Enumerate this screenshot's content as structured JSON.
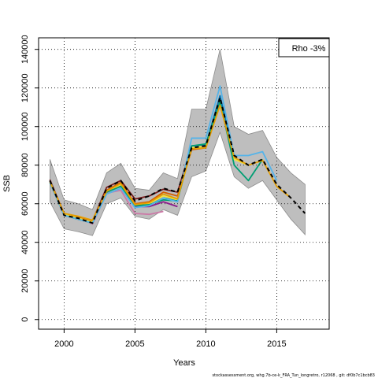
{
  "chart_data": {
    "type": "line",
    "title": "",
    "xlabel": "Years",
    "ylabel": "SSB",
    "xlim": [
      1998.2,
      2018.7
    ],
    "ylim": [
      -5000,
      146000
    ],
    "xticks": [
      2000,
      2005,
      2010,
      2015
    ],
    "yticks": [
      0,
      20000,
      40000,
      60000,
      80000,
      100000,
      120000,
      140000
    ],
    "grid": true,
    "legend": {
      "position": "top-right",
      "text": "Rho -3%"
    },
    "band": {
      "x": [
        1999,
        2000,
        2001,
        2002,
        2003,
        2004,
        2005,
        2006,
        2007,
        2008,
        2009,
        2010,
        2011,
        2012,
        2013,
        2014,
        2015,
        2016,
        2017
      ],
      "upper": [
        83000,
        62000,
        60000,
        57000,
        76000,
        81000,
        68000,
        67000,
        76000,
        73000,
        109000,
        109000,
        140000,
        100000,
        96000,
        98000,
        84000,
        76000,
        70000
      ],
      "lower": [
        61000,
        47000,
        45500,
        43500,
        60000,
        63000,
        53500,
        52000,
        57000,
        54000,
        74000,
        77000,
        97000,
        74000,
        68000,
        72000,
        62000,
        52000,
        44000
      ]
    },
    "series": [
      {
        "color": "#000000",
        "dash": true,
        "x": [
          1999,
          2000,
          2001,
          2002,
          2003,
          2004,
          2005,
          2006,
          2007,
          2008,
          2009,
          2010,
          2011,
          2012,
          2013,
          2014,
          2015,
          2016,
          2017
        ],
        "y": [
          72000,
          54000,
          52500,
          50000,
          68000,
          72000,
          61500,
          64000,
          68000,
          66000,
          89000,
          90000,
          115000,
          85000,
          80000,
          83000,
          70000,
          63000,
          55000
        ]
      },
      {
        "color": "#e69f00",
        "x": [
          1999,
          2000,
          2001,
          2002,
          2003,
          2004,
          2005,
          2006,
          2007,
          2008,
          2009,
          2010,
          2011,
          2012,
          2013,
          2014,
          2015,
          2016
        ],
        "y": [
          71500,
          55000,
          53500,
          51500,
          66500,
          70500,
          59500,
          60500,
          65000,
          62500,
          88500,
          89000,
          111000,
          84000,
          80000,
          82500,
          69000,
          63000
        ]
      },
      {
        "color": "#56b4e9",
        "x": [
          1999,
          2000,
          2001,
          2002,
          2003,
          2004,
          2005,
          2006,
          2007,
          2008,
          2009,
          2010,
          2011,
          2012,
          2013,
          2014,
          2015
        ],
        "y": [
          71000,
          54000,
          52000,
          50000,
          65000,
          68000,
          58000,
          59000,
          63000,
          61000,
          94000,
          94000,
          121000,
          85000,
          85000,
          87000,
          72000
        ]
      },
      {
        "color": "#009e73",
        "x": [
          1999,
          2000,
          2001,
          2002,
          2003,
          2004,
          2005,
          2006,
          2007,
          2008,
          2009,
          2010,
          2011,
          2012,
          2013,
          2014
        ],
        "y": [
          71000,
          54000,
          52000,
          50000,
          66000,
          69000,
          59000,
          59500,
          62000,
          61500,
          90000,
          91000,
          113000,
          80000,
          72000,
          83000
        ]
      },
      {
        "color": "#f0e442",
        "x": [
          1999,
          2000,
          2001,
          2002,
          2003,
          2004,
          2005,
          2006,
          2007,
          2008,
          2009,
          2010,
          2011,
          2012,
          2013
        ],
        "y": [
          71000,
          54500,
          52500,
          50500,
          66000,
          70000,
          59500,
          60000,
          64000,
          62000,
          89000,
          90000,
          112000,
          83000,
          80000
        ]
      },
      {
        "color": "#0072b2",
        "x": [
          1999,
          2000,
          2001,
          2002,
          2003,
          2004,
          2005,
          2006,
          2007,
          2008,
          2009,
          2010,
          2011,
          2012
        ],
        "y": [
          72000,
          54000,
          52500,
          50000,
          66500,
          70000,
          59000,
          59500,
          63000,
          62000,
          90000,
          90500,
          116000,
          84000
        ]
      },
      {
        "color": "#d55e00",
        "x": [
          1999,
          2000,
          2001,
          2002,
          2003,
          2004,
          2005,
          2006,
          2007,
          2008,
          2009,
          2010,
          2011
        ],
        "y": [
          72000,
          55000,
          53000,
          51000,
          67000,
          71000,
          60000,
          61000,
          66000,
          64000,
          88000,
          89000,
          114000
        ]
      },
      {
        "color": "#cc79a7",
        "x": [
          1999,
          2000,
          2001,
          2002,
          2003,
          2004,
          2005,
          2006,
          2007
        ],
        "y": [
          72000,
          55000,
          53000,
          49500,
          65500,
          67000,
          55000,
          54500,
          56000
        ]
      },
      {
        "color": "#8b1a8b",
        "x": [
          1999,
          2000,
          2001,
          2002,
          2003,
          2004,
          2005,
          2006,
          2007,
          2008
        ],
        "y": [
          72000,
          54000,
          52000,
          50000,
          67000,
          69500,
          58500,
          58500,
          61000,
          58500
        ]
      },
      {
        "color": "#7a1f1f",
        "x": [
          1999,
          2000,
          2001,
          2002,
          2003,
          2004,
          2005,
          2006,
          2007,
          2008,
          2009
        ],
        "y": [
          72500,
          54500,
          53000,
          51000,
          68500,
          72000,
          62500,
          64000,
          67500,
          66000,
          90000
        ]
      }
    ]
  },
  "footer": "stockassessment.org, whg.7b-ce-k_FRA_Tun_longretro, r12068 , git: df0b7c1bcb83"
}
